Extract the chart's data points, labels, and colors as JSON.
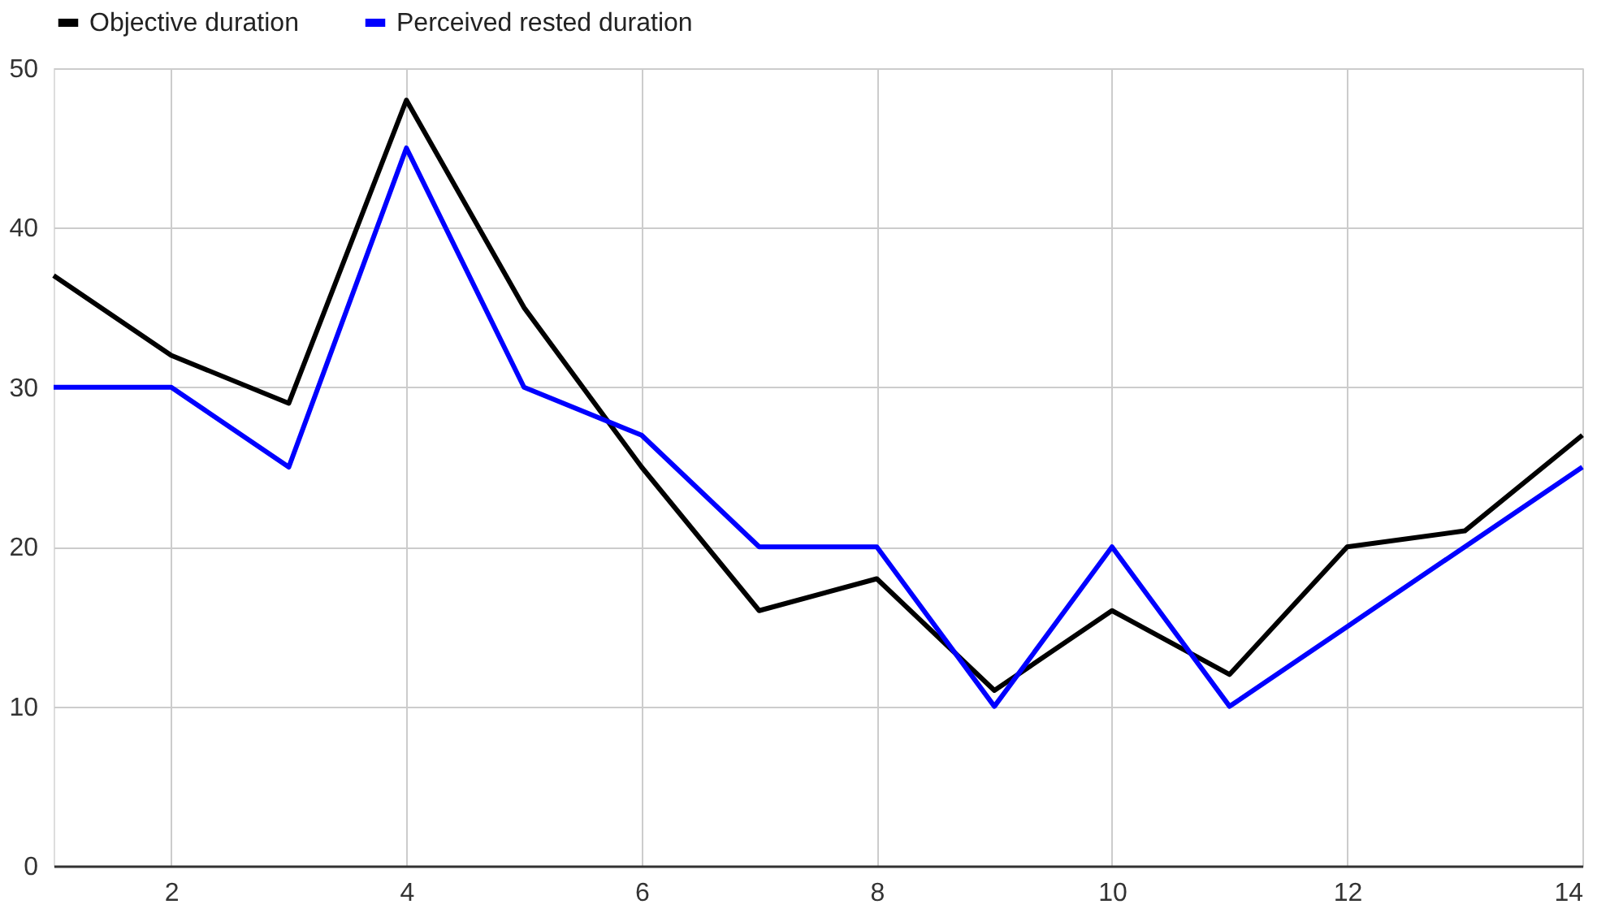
{
  "chart_data": {
    "type": "line",
    "x": [
      1,
      2,
      3,
      4,
      5,
      6,
      7,
      8,
      9,
      10,
      11,
      12,
      13,
      14
    ],
    "series": [
      {
        "name": "Objective duration",
        "color": "#000000",
        "values": [
          37,
          32,
          29,
          48,
          35,
          25,
          16,
          18,
          11,
          16,
          12,
          20,
          21,
          27
        ]
      },
      {
        "name": "Perceived rested duration",
        "color": "#0000ff",
        "values": [
          30,
          30,
          25,
          45,
          30,
          27,
          20,
          20,
          10,
          20,
          10,
          15,
          20,
          25
        ]
      }
    ],
    "xlim": [
      1,
      14
    ],
    "xticks": [
      2,
      4,
      6,
      8,
      10,
      12,
      14
    ],
    "ylim": [
      0,
      50
    ],
    "yticks": [
      0,
      10,
      20,
      30,
      40,
      50
    ],
    "grid": true,
    "legend": "top",
    "marker": "none",
    "line_style": "solid"
  }
}
